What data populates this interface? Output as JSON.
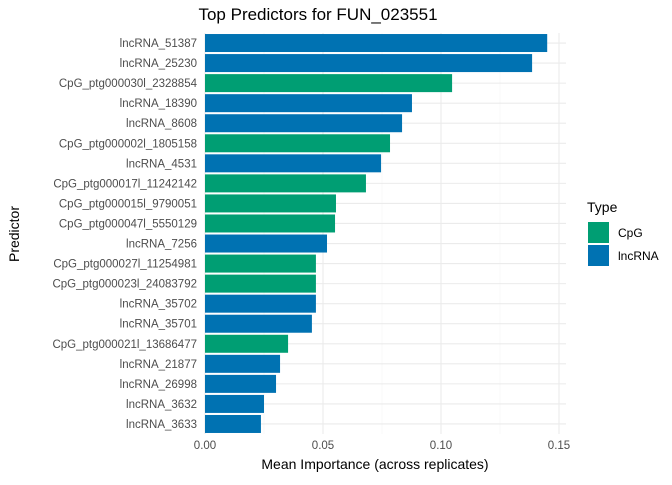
{
  "chart_data": {
    "type": "bar",
    "orientation": "horizontal",
    "title": "Top Predictors for FUN_023551",
    "xlabel": "Mean Importance (across replicates)",
    "ylabel": "Predictor",
    "xlim": [
      0,
      0.153
    ],
    "xticks": [
      0,
      0.05,
      0.1,
      0.15
    ],
    "xtick_labels": [
      "0.00",
      "0.05",
      "0.10",
      "0.15"
    ],
    "grid": true,
    "legend": {
      "title": "Type",
      "placement": "right",
      "entries": [
        {
          "label": "CpG",
          "color": "#009E73"
        },
        {
          "label": "lncRNA",
          "color": "#0072B2"
        }
      ]
    },
    "categories": [
      "lncRNA_51387",
      "lncRNA_25230",
      "CpG_ptg000030l_2328854",
      "lncRNA_18390",
      "lncRNA_8608",
      "CpG_ptg000002l_1805158",
      "lncRNA_4531",
      "CpG_ptg000017l_11242142",
      "CpG_ptg000015l_9790051",
      "CpG_ptg000047l_5550129",
      "lncRNA_7256",
      "CpG_ptg000027l_11254981",
      "CpG_ptg000023l_24083792",
      "lncRNA_35702",
      "lncRNA_35701",
      "CpG_ptg000021l_13686477",
      "lncRNA_21877",
      "lncRNA_26998",
      "lncRNA_3632",
      "lncRNA_3633"
    ],
    "values": [
      0.145,
      0.1386,
      0.1047,
      0.0877,
      0.0835,
      0.0784,
      0.0746,
      0.0682,
      0.0555,
      0.0551,
      0.0517,
      0.047,
      0.047,
      0.047,
      0.0453,
      0.0352,
      0.0318,
      0.0301,
      0.025,
      0.0237
    ],
    "types": [
      "lncRNA",
      "lncRNA",
      "CpG",
      "lncRNA",
      "lncRNA",
      "CpG",
      "lncRNA",
      "CpG",
      "CpG",
      "CpG",
      "lncRNA",
      "CpG",
      "CpG",
      "lncRNA",
      "lncRNA",
      "CpG",
      "lncRNA",
      "lncRNA",
      "lncRNA",
      "lncRNA"
    ]
  }
}
